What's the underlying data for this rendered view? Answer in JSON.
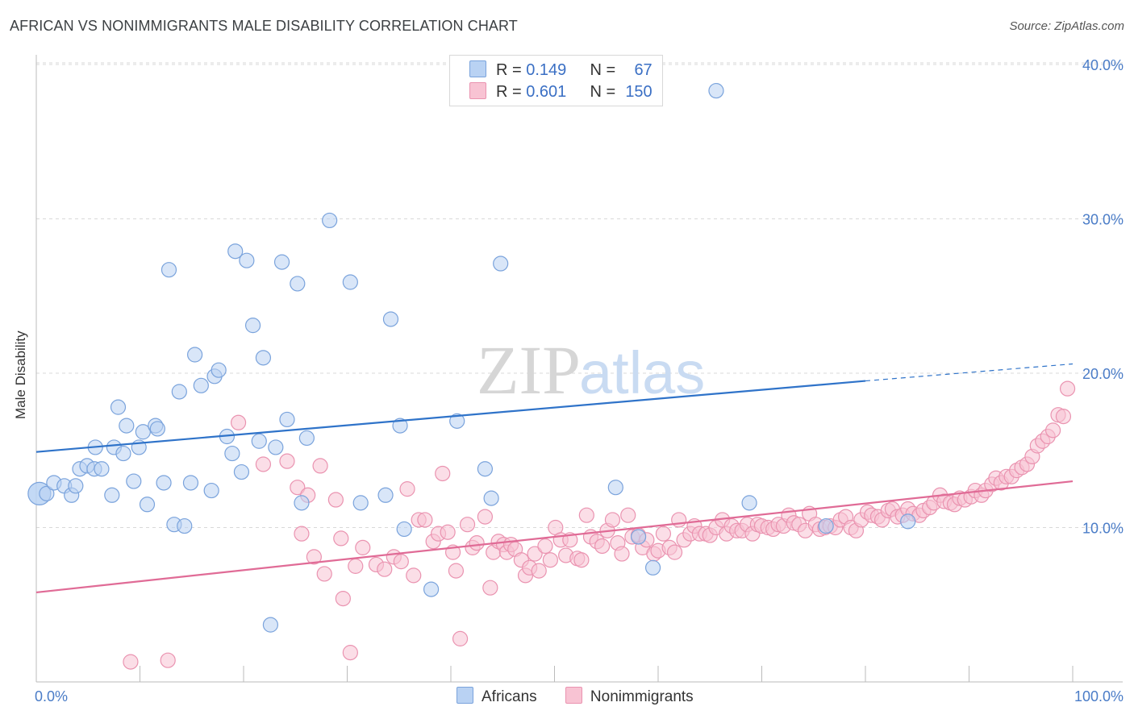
{
  "title": "AFRICAN VS NONIMMIGRANTS MALE DISABILITY CORRELATION CHART",
  "source": "Source: ZipAtlas.com",
  "watermark": {
    "zip": "ZIP",
    "atlas": "atlas"
  },
  "colors": {
    "africans_fill": "#b9d2f3",
    "africans_stroke": "#7aa3dc",
    "africans_line": "#2f73c9",
    "nonimm_fill": "#f8c3d3",
    "nonimm_stroke": "#ea93b0",
    "nonimm_line": "#e06b96",
    "grid": "#d9d9d9",
    "tick_label": "#4a7cc7"
  },
  "legend": {
    "rows": [
      {
        "r_label": "R = ",
        "r_value": "0.149",
        "n_label": "N = ",
        "n_value": "67"
      },
      {
        "r_label": "R = ",
        "r_value": "0.601",
        "n_label": "N = ",
        "n_value": "150"
      }
    ]
  },
  "bottom_legend": [
    "Africans",
    "Nonimmigrants"
  ],
  "chart_data": {
    "type": "scatter",
    "title": "AFRICAN VS NONIMMIGRANTS MALE DISABILITY CORRELATION CHART",
    "xlabel": "",
    "ylabel": "Male Disability",
    "xlim": [
      0,
      100
    ],
    "ylim": [
      0,
      40.5
    ],
    "x_tick_labels": [
      "0.0%",
      "100.0%"
    ],
    "y_ticks": [
      10,
      20,
      30,
      40
    ],
    "y_tick_labels": [
      "10.0%",
      "20.0%",
      "30.0%",
      "40.0%"
    ],
    "grid": "horizontal dashed",
    "legend_placement": "top-center",
    "series": [
      {
        "name": "Africans",
        "r": 0.149,
        "n": 67,
        "trend": {
          "x0": 0,
          "y0": 14.9,
          "x1": 80,
          "y1": 19.5,
          "dashed_to_x": 100,
          "dashed_to_y": 20.6
        },
        "points": [
          [
            0.3,
            12.2,
            "big"
          ],
          [
            1,
            12.2
          ],
          [
            1.7,
            12.9
          ],
          [
            2.7,
            12.7
          ],
          [
            3.4,
            12.1
          ],
          [
            3.8,
            12.7
          ],
          [
            4.2,
            13.8
          ],
          [
            4.9,
            14.0
          ],
          [
            5.6,
            13.8
          ],
          [
            6.3,
            13.8
          ],
          [
            5.7,
            15.2
          ],
          [
            7.3,
            12.1
          ],
          [
            7.5,
            15.2
          ],
          [
            7.9,
            17.8
          ],
          [
            8.4,
            14.8
          ],
          [
            8.7,
            16.6
          ],
          [
            9.4,
            13.0
          ],
          [
            9.9,
            15.2
          ],
          [
            10.3,
            16.2
          ],
          [
            10.7,
            11.5
          ],
          [
            11.5,
            16.6
          ],
          [
            11.7,
            16.4
          ],
          [
            12.3,
            12.9
          ],
          [
            12.8,
            26.7
          ],
          [
            13.3,
            10.2
          ],
          [
            13.8,
            18.8
          ],
          [
            14.3,
            10.1
          ],
          [
            14.9,
            12.9
          ],
          [
            15.3,
            21.2
          ],
          [
            15.9,
            19.2
          ],
          [
            16.9,
            12.4
          ],
          [
            17.2,
            19.8
          ],
          [
            17.6,
            20.2
          ],
          [
            18.4,
            15.9
          ],
          [
            18.9,
            14.8
          ],
          [
            19.2,
            27.9
          ],
          [
            19.8,
            13.6
          ],
          [
            20.3,
            27.3
          ],
          [
            20.9,
            23.1
          ],
          [
            21.5,
            15.6
          ],
          [
            21.9,
            21.0
          ],
          [
            22.6,
            3.7
          ],
          [
            23.1,
            15.2
          ],
          [
            23.7,
            27.2
          ],
          [
            24.2,
            17.0
          ],
          [
            25.2,
            25.8
          ],
          [
            25.6,
            11.6
          ],
          [
            26.1,
            15.8
          ],
          [
            28.3,
            29.9
          ],
          [
            30.3,
            25.9
          ],
          [
            31.3,
            11.6
          ],
          [
            33.7,
            12.1
          ],
          [
            34.2,
            23.5
          ],
          [
            35.1,
            16.6
          ],
          [
            35.5,
            9.9
          ],
          [
            38.1,
            6.0
          ],
          [
            40.6,
            16.9
          ],
          [
            43.3,
            13.8
          ],
          [
            43.9,
            11.9
          ],
          [
            44.8,
            27.1
          ],
          [
            55.9,
            12.6
          ],
          [
            58.1,
            9.4
          ],
          [
            59.5,
            7.4
          ],
          [
            65.6,
            38.3
          ],
          [
            68.8,
            11.6
          ],
          [
            76.2,
            10.1
          ],
          [
            84.1,
            10.4
          ]
        ]
      },
      {
        "name": "Nonimmigrants",
        "r": 0.601,
        "n": 150,
        "trend": {
          "x0": 0,
          "y0": 5.8,
          "x1": 100,
          "y1": 13.0
        },
        "points": [
          [
            9.1,
            1.3
          ],
          [
            12.7,
            1.4
          ],
          [
            19.5,
            16.8
          ],
          [
            21.9,
            14.1
          ],
          [
            24.2,
            14.3
          ],
          [
            25.2,
            12.6
          ],
          [
            25.6,
            9.6
          ],
          [
            26.2,
            12.1
          ],
          [
            26.8,
            8.1
          ],
          [
            27.4,
            14.0
          ],
          [
            27.8,
            7.0
          ],
          [
            28.9,
            11.8
          ],
          [
            29.4,
            9.3
          ],
          [
            29.6,
            5.4
          ],
          [
            30.3,
            1.9
          ],
          [
            30.8,
            7.5
          ],
          [
            31.5,
            8.7
          ],
          [
            32.8,
            7.6
          ],
          [
            33.6,
            7.3
          ],
          [
            34.5,
            8.1
          ],
          [
            35.2,
            7.8
          ],
          [
            35.8,
            12.5
          ],
          [
            36.4,
            6.9
          ],
          [
            36.9,
            10.5
          ],
          [
            37.5,
            10.5
          ],
          [
            38.3,
            9.1
          ],
          [
            38.8,
            9.6
          ],
          [
            39.2,
            13.5
          ],
          [
            39.7,
            9.7
          ],
          [
            40.2,
            8.4
          ],
          [
            40.5,
            7.2
          ],
          [
            40.9,
            2.8
          ],
          [
            41.6,
            10.2
          ],
          [
            42.1,
            8.7
          ],
          [
            42.5,
            9.0
          ],
          [
            43.3,
            10.7
          ],
          [
            43.8,
            6.1
          ],
          [
            44.1,
            8.4
          ],
          [
            44.6,
            9.1
          ],
          [
            45.1,
            8.9
          ],
          [
            45.4,
            8.4
          ],
          [
            45.8,
            8.9
          ],
          [
            46.2,
            8.6
          ],
          [
            46.8,
            7.9
          ],
          [
            47.2,
            6.9
          ],
          [
            47.6,
            7.4
          ],
          [
            48.1,
            8.3
          ],
          [
            48.5,
            7.2
          ],
          [
            49.1,
            8.8
          ],
          [
            49.6,
            7.9
          ],
          [
            50.1,
            10.0
          ],
          [
            50.6,
            9.2
          ],
          [
            51.1,
            8.2
          ],
          [
            51.5,
            9.2
          ],
          [
            52.2,
            8.0
          ],
          [
            52.6,
            7.9
          ],
          [
            53.1,
            10.8
          ],
          [
            53.5,
            9.4
          ],
          [
            54.1,
            9.1
          ],
          [
            54.6,
            8.8
          ],
          [
            55.1,
            9.8
          ],
          [
            55.6,
            10.5
          ],
          [
            56.1,
            9.0
          ],
          [
            56.5,
            8.3
          ],
          [
            57.1,
            10.8
          ],
          [
            57.5,
            9.4
          ],
          [
            58.1,
            9.5
          ],
          [
            58.5,
            8.7
          ],
          [
            58.9,
            9.2
          ],
          [
            59.6,
            8.3
          ],
          [
            60.0,
            8.5
          ],
          [
            60.5,
            9.6
          ],
          [
            61.1,
            8.7
          ],
          [
            61.6,
            8.4
          ],
          [
            62.0,
            10.5
          ],
          [
            62.5,
            9.2
          ],
          [
            63.1,
            9.6
          ],
          [
            63.5,
            10.1
          ],
          [
            64.0,
            9.6
          ],
          [
            64.6,
            9.6
          ],
          [
            65.0,
            9.5
          ],
          [
            65.6,
            10.0
          ],
          [
            66.2,
            10.5
          ],
          [
            66.6,
            9.6
          ],
          [
            67.1,
            10.1
          ],
          [
            67.6,
            9.8
          ],
          [
            68.1,
            9.8
          ],
          [
            68.6,
            10.2
          ],
          [
            69.1,
            9.6
          ],
          [
            69.6,
            10.2
          ],
          [
            70.0,
            10.1
          ],
          [
            70.6,
            10.0
          ],
          [
            71.1,
            9.9
          ],
          [
            71.6,
            10.2
          ],
          [
            72.1,
            10.1
          ],
          [
            72.6,
            10.8
          ],
          [
            73.1,
            10.3
          ],
          [
            73.6,
            10.2
          ],
          [
            74.2,
            9.8
          ],
          [
            74.6,
            10.9
          ],
          [
            75.2,
            10.2
          ],
          [
            75.6,
            9.9
          ],
          [
            76.1,
            10.0
          ],
          [
            76.6,
            10.1
          ],
          [
            77.1,
            10.0
          ],
          [
            77.6,
            10.5
          ],
          [
            78.1,
            10.7
          ],
          [
            78.6,
            10.0
          ],
          [
            79.1,
            9.8
          ],
          [
            79.6,
            10.5
          ],
          [
            80.2,
            11.0
          ],
          [
            80.6,
            10.8
          ],
          [
            81.2,
            10.7
          ],
          [
            81.6,
            10.5
          ],
          [
            82.2,
            11.1
          ],
          [
            82.6,
            11.2
          ],
          [
            83.1,
            10.7
          ],
          [
            83.6,
            10.8
          ],
          [
            84.1,
            11.2
          ],
          [
            84.6,
            10.9
          ],
          [
            85.2,
            10.8
          ],
          [
            85.6,
            11.1
          ],
          [
            86.2,
            11.3
          ],
          [
            86.6,
            11.6
          ],
          [
            87.2,
            12.1
          ],
          [
            87.6,
            11.7
          ],
          [
            88.2,
            11.6
          ],
          [
            88.6,
            11.5
          ],
          [
            89.1,
            11.9
          ],
          [
            89.6,
            11.8
          ],
          [
            90.2,
            12.0
          ],
          [
            90.6,
            12.4
          ],
          [
            91.2,
            12.1
          ],
          [
            91.6,
            12.4
          ],
          [
            92.2,
            12.8
          ],
          [
            92.6,
            13.2
          ],
          [
            93.1,
            12.9
          ],
          [
            93.6,
            13.3
          ],
          [
            94.1,
            13.3
          ],
          [
            94.6,
            13.7
          ],
          [
            95.1,
            13.9
          ],
          [
            95.6,
            14.1
          ],
          [
            96.1,
            14.6
          ],
          [
            96.6,
            15.3
          ],
          [
            97.1,
            15.6
          ],
          [
            97.6,
            15.9
          ],
          [
            98.1,
            16.3
          ],
          [
            98.6,
            17.3
          ],
          [
            99.1,
            17.2
          ],
          [
            99.5,
            19.0
          ]
        ]
      }
    ]
  }
}
